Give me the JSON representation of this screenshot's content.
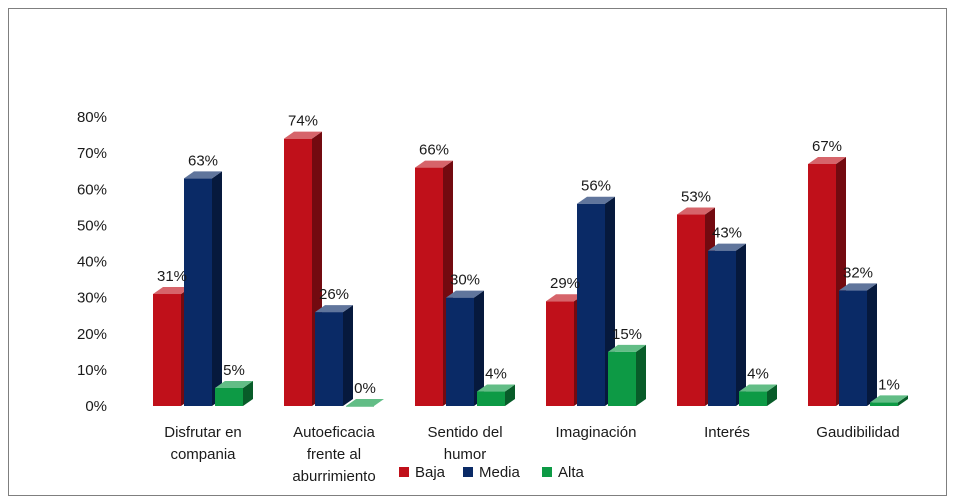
{
  "colors": {
    "baja": "#c0101a",
    "media": "#0a2a66",
    "alta": "#0d9a45",
    "frame": "#7f7f7f",
    "axis": "#bfbfbf"
  },
  "chart_data": {
    "type": "bar",
    "style": "3d-clustered-column",
    "categories": [
      [
        "Disfrutar en",
        "compania"
      ],
      [
        "Autoeficacia",
        "frente al",
        "aburrimiento"
      ],
      [
        "Sentido del",
        "humor"
      ],
      [
        "Imaginación"
      ],
      [
        "Interés"
      ],
      [
        "Gaudibilidad"
      ]
    ],
    "series": [
      {
        "name": "Baja",
        "color_key": "baja",
        "values": [
          31,
          74,
          66,
          29,
          53,
          67
        ],
        "labels": [
          "31%",
          "74%",
          "66%",
          "29%",
          "53%",
          "67%"
        ]
      },
      {
        "name": "Media",
        "color_key": "media",
        "values": [
          63,
          26,
          30,
          56,
          43,
          32
        ],
        "labels": [
          "63%",
          "26%",
          "30%",
          "56%",
          "43%",
          "32%"
        ]
      },
      {
        "name": "Alta",
        "color_key": "alta",
        "values": [
          5,
          0,
          4,
          15,
          4,
          1
        ],
        "labels": [
          "5%",
          "0%",
          "4%",
          "15%",
          "4%",
          "1%"
        ]
      }
    ],
    "y_ticks": [
      "0%",
      "10%",
      "20%",
      "30%",
      "40%",
      "50%",
      "60%",
      "70%",
      "80%"
    ],
    "ylim": [
      0,
      80
    ],
    "grid": false,
    "legend_position": "bottom"
  }
}
